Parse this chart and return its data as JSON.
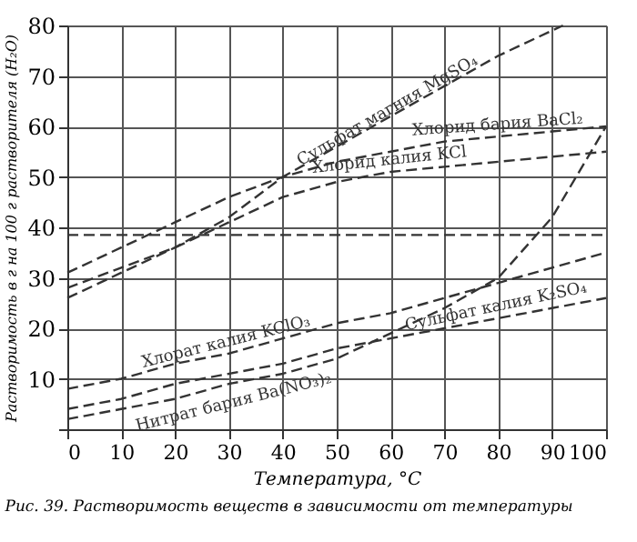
{
  "chart_data": {
    "type": "line",
    "xlabel": "Температура, °C",
    "ylabel": "Растворимость в г на 100 г растворителя (H₂O)",
    "annotations": [
      "Рис. 39. Растворимость веществ в зависимости от температуры"
    ],
    "x": [
      0,
      10,
      20,
      30,
      40,
      50,
      60,
      70,
      80,
      90,
      100
    ],
    "series": [
      {
        "name": "Сульфат магния MgSO₄",
        "color": "#333333",
        "x": [
          0,
          10,
          20,
          30,
          40,
          50,
          60,
          70,
          80,
          92
        ],
        "values": [
          26,
          31,
          36,
          42,
          50,
          56,
          62,
          68,
          74,
          80
        ]
      },
      {
        "name": "Хлорид бария BaCl₂",
        "color": "#333333",
        "values": [
          31,
          36,
          41,
          46,
          50,
          53,
          55,
          57,
          58,
          59,
          60
        ]
      },
      {
        "name": "Хлорид калия KCl",
        "color": "#333333",
        "values": [
          28,
          32,
          36,
          41,
          46,
          49,
          51,
          52,
          53,
          54,
          55
        ]
      },
      {
        "color": "#333333",
        "values": [
          38.5,
          38.5,
          38.5,
          38.5,
          38.5,
          38.5,
          38.5,
          38.5,
          38.5,
          38.5,
          38.5
        ]
      },
      {
        "name": "Хлорат калия KClO₃",
        "color": "#333333",
        "values": [
          8,
          10,
          13,
          15,
          18,
          21,
          23,
          26,
          29,
          32,
          35
        ]
      },
      {
        "name": "Нитрат бария Ba(NO₃)₂",
        "color": "#333333",
        "values": [
          2,
          4,
          6,
          9,
          11,
          14,
          19,
          24,
          30,
          42,
          60
        ]
      },
      {
        "name": "Сульфат калия K₂SO₄",
        "color": "#333333",
        "values": [
          4,
          6,
          9,
          11,
          13,
          16,
          18,
          20,
          22,
          24,
          26
        ]
      }
    ],
    "xlim": [
      0,
      100
    ],
    "xticks": [
      0,
      10,
      20,
      30,
      40,
      50,
      60,
      70,
      80,
      90,
      100
    ],
    "ylim": [
      0,
      80
    ],
    "yticks": [
      {
        "value": 0,
        "label": null
      },
      10,
      20,
      30,
      40,
      50,
      60,
      70,
      80
    ],
    "grid": true,
    "marker": "none",
    "line_style": "dashed"
  }
}
